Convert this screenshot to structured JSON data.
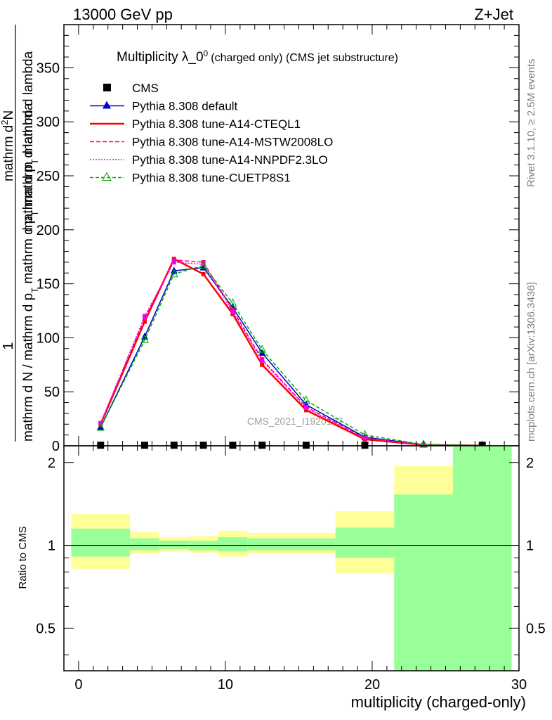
{
  "header": {
    "left": "13000 GeV pp",
    "right": "Z+Jet"
  },
  "side_labels": {
    "rivet": "Rivet 3.1.10, ≥ 2.5M events",
    "mcplots": "mcplots.cern.ch [arXiv:1306.3436]"
  },
  "watermark": "CMS_2021_I1920187",
  "chart_data": [
    {
      "type": "line",
      "title_main": "Multiplicity λ_0",
      "title_sup": "0",
      "title_rest": "(charged only) (CMS jet substructure)",
      "ylabel_top": "1",
      "ylabel_top_upper": "mathrm d",
      "ylabel_top_upper_sup": "2",
      "ylabel_top_upper_n": "N",
      "ylabel_top_lower": "mathrm d p",
      "ylabel_top_lower_sub": "T",
      "ylabel_top_lower_rest": " mathrm d lambda",
      "ylabel_bottom_a": "mathrm d N / mathrm d p",
      "ylabel_bottom_sub": "T",
      "ylabel_bottom_b": " mathrm d p",
      "ylabel_bottom_sub2": "T",
      "ylabel_bottom_c": " mathrm d lambda",
      "ylim": [
        0,
        390
      ],
      "xlim": [
        -1,
        30
      ],
      "y_ticks": [
        0,
        50,
        100,
        150,
        200,
        250,
        300,
        350
      ],
      "x_ticks": [
        0,
        10,
        20,
        30
      ],
      "legend_position": "top-left",
      "data": {
        "name": "CMS",
        "x": [
          1.5,
          4.5,
          6.5,
          8.5,
          10.5,
          12.5,
          15.5,
          19.5,
          27.5
        ],
        "y": [
          0.5,
          0.5,
          0.5,
          0.5,
          0.5,
          0.5,
          0.5,
          0.5,
          0.5
        ]
      },
      "series": [
        {
          "name": "Pythia 8.308 default",
          "color": "#0000cc",
          "dash": "",
          "marker": "filled-triangle",
          "x": [
            1.5,
            4.5,
            6.5,
            8.5,
            10.5,
            12.5,
            15.5,
            19.5,
            23.5,
            27.5
          ],
          "y": [
            17,
            101,
            162,
            165,
            128,
            86,
            38,
            8,
            1.0,
            0.3
          ]
        },
        {
          "name": "Pythia 8.308 tune-A14-CTEQL1",
          "color": "#ff0000",
          "dash": "",
          "marker": "none",
          "x": [
            1.5,
            4.5,
            6.5,
            8.5,
            10.5,
            12.5,
            15.5,
            19.5,
            23.5,
            27.5
          ],
          "y": [
            20,
            115,
            173,
            159,
            122,
            75,
            33,
            6,
            0.8,
            0.2
          ]
        },
        {
          "name": "Pythia 8.308 tune-A14-MSTW2008LO",
          "color": "#ff0080",
          "dash": "6,3",
          "marker": "none",
          "x": [
            1.5,
            4.5,
            6.5,
            8.5,
            10.5,
            12.5,
            15.5,
            19.5,
            23.5,
            27.5
          ],
          "y": [
            21,
            118,
            172,
            170,
            126,
            80,
            36,
            7,
            0.9,
            0.2
          ]
        },
        {
          "name": "Pythia 8.308 tune-A14-NNPDF2.3LO",
          "color": "#ee00ee",
          "dash": "2,2",
          "marker": "none",
          "x": [
            1.5,
            4.5,
            6.5,
            8.5,
            10.5,
            12.5,
            15.5,
            19.5,
            23.5,
            27.5
          ],
          "y": [
            21,
            120,
            170,
            168,
            124,
            79,
            35,
            7,
            0.9,
            0.2
          ]
        },
        {
          "name": "Pythia 8.308 tune-CUETP8S1",
          "color": "#00aa00",
          "dash": "5,3",
          "marker": "open-triangle",
          "x": [
            1.5,
            4.5,
            6.5,
            8.5,
            10.5,
            12.5,
            15.5,
            19.5,
            23.5,
            27.5
          ],
          "y": [
            17,
            98,
            159,
            167,
            132,
            89,
            42,
            10,
            1.2,
            0.3
          ]
        }
      ]
    },
    {
      "type": "area",
      "ylabel": "Ratio to CMS",
      "xlabel": "multiplicity (charged-only)",
      "ylim": [
        0.35,
        2.3
      ],
      "xlim": [
        -1,
        30
      ],
      "y_ticks": [
        0.5,
        1,
        2
      ],
      "x_ticks": [
        0,
        10,
        20,
        30
      ],
      "bands": [
        {
          "xlo": -0.5,
          "xhi": 3.5,
          "yellow": [
            0.82,
            1.3
          ],
          "green": [
            0.91,
            1.15
          ]
        },
        {
          "xlo": 3.5,
          "xhi": 5.5,
          "yellow": [
            0.93,
            1.12
          ],
          "green": [
            0.96,
            1.06
          ]
        },
        {
          "xlo": 5.5,
          "xhi": 7.5,
          "yellow": [
            0.95,
            1.07
          ],
          "green": [
            0.97,
            1.04
          ]
        },
        {
          "xlo": 7.5,
          "xhi": 9.5,
          "yellow": [
            0.94,
            1.08
          ],
          "green": [
            0.96,
            1.04
          ]
        },
        {
          "xlo": 9.5,
          "xhi": 11.5,
          "yellow": [
            0.91,
            1.13
          ],
          "green": [
            0.95,
            1.07
          ]
        },
        {
          "xlo": 11.5,
          "xhi": 17.5,
          "yellow": [
            0.93,
            1.11
          ],
          "green": [
            0.96,
            1.06
          ]
        },
        {
          "xlo": 17.5,
          "xhi": 21.5,
          "yellow": [
            0.79,
            1.33
          ],
          "green": [
            0.9,
            1.16
          ]
        },
        {
          "xlo": 21.5,
          "xhi": 25.5,
          "yellow": [
            0.35,
            1.94
          ],
          "green": [
            0.35,
            1.53
          ]
        },
        {
          "xlo": 25.5,
          "xhi": 29.5,
          "yellow": [
            0.35,
            2.3
          ],
          "green": [
            0.35,
            2.3
          ]
        }
      ]
    }
  ],
  "colors": {
    "band_yellow": "#ffff99",
    "band_green": "#99ff99",
    "text_grey": "#808080"
  }
}
